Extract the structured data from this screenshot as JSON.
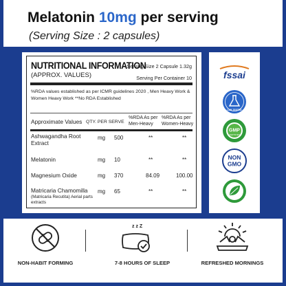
{
  "header": {
    "title_prefix": "Melatonin ",
    "title_accent": "10mg",
    "title_suffix": " per serving",
    "subtitle": "(Serving Size : 2 capsules)"
  },
  "facts": {
    "title": "NUTRITIONAL INFORMATION",
    "subtitle": "(APPROX. VALUES)",
    "serving_size": "Serving Size 2 Capsule 1.32g",
    "servings_per_container": "Serving Per Container 10",
    "note": "%RDA values established as per ICMR guidelines 2020 , Men Heavy Work & Women Heavy Work **No RDA Established",
    "columns": {
      "name": "Approximate Values",
      "qty": "QTY. PER SERVE",
      "rda_men": "%RDA As per Men-Heavy",
      "rda_women": "%RDA As per Women-Heavy"
    },
    "rows": [
      {
        "name": "Ashwagandha Root Extract",
        "unit": "mg",
        "qty": "500",
        "men": "**",
        "women": "**",
        "note": ""
      },
      {
        "name": "Melatonin",
        "unit": "mg",
        "qty": "10",
        "men": "**",
        "women": "**",
        "note": ""
      },
      {
        "name": "Magnesium Oxide",
        "unit": "mg",
        "qty": "370",
        "men": "84.09",
        "women": "100.00",
        "note": ""
      },
      {
        "name": "Matricaria Chamomilla",
        "unit": "mg",
        "qty": "65",
        "men": "**",
        "women": "**",
        "note": "(Matricaria Recutita) Aerial parts extracts"
      }
    ]
  },
  "badges": {
    "fssai": "fssai",
    "lab_tested": "LAB TESTED",
    "gmp": "GMP",
    "gmp_certified": "CERTIFIED",
    "non": "NON",
    "gmo": "GMO",
    "vegetarian_icon": "leaf-icon"
  },
  "benefits": [
    {
      "label": "NON-HABIT FORMING",
      "icon": "no-pills-icon"
    },
    {
      "label": "7-8 HOURS OF SLEEP",
      "icon": "sleep-pillow-icon"
    },
    {
      "label": "REFRESHED MORNINGS",
      "icon": "sunrise-person-icon"
    }
  ],
  "colors": {
    "brand_blue": "#1b3d8f",
    "accent_blue": "#2a66c9",
    "badge_green": "#2e9a3a"
  }
}
